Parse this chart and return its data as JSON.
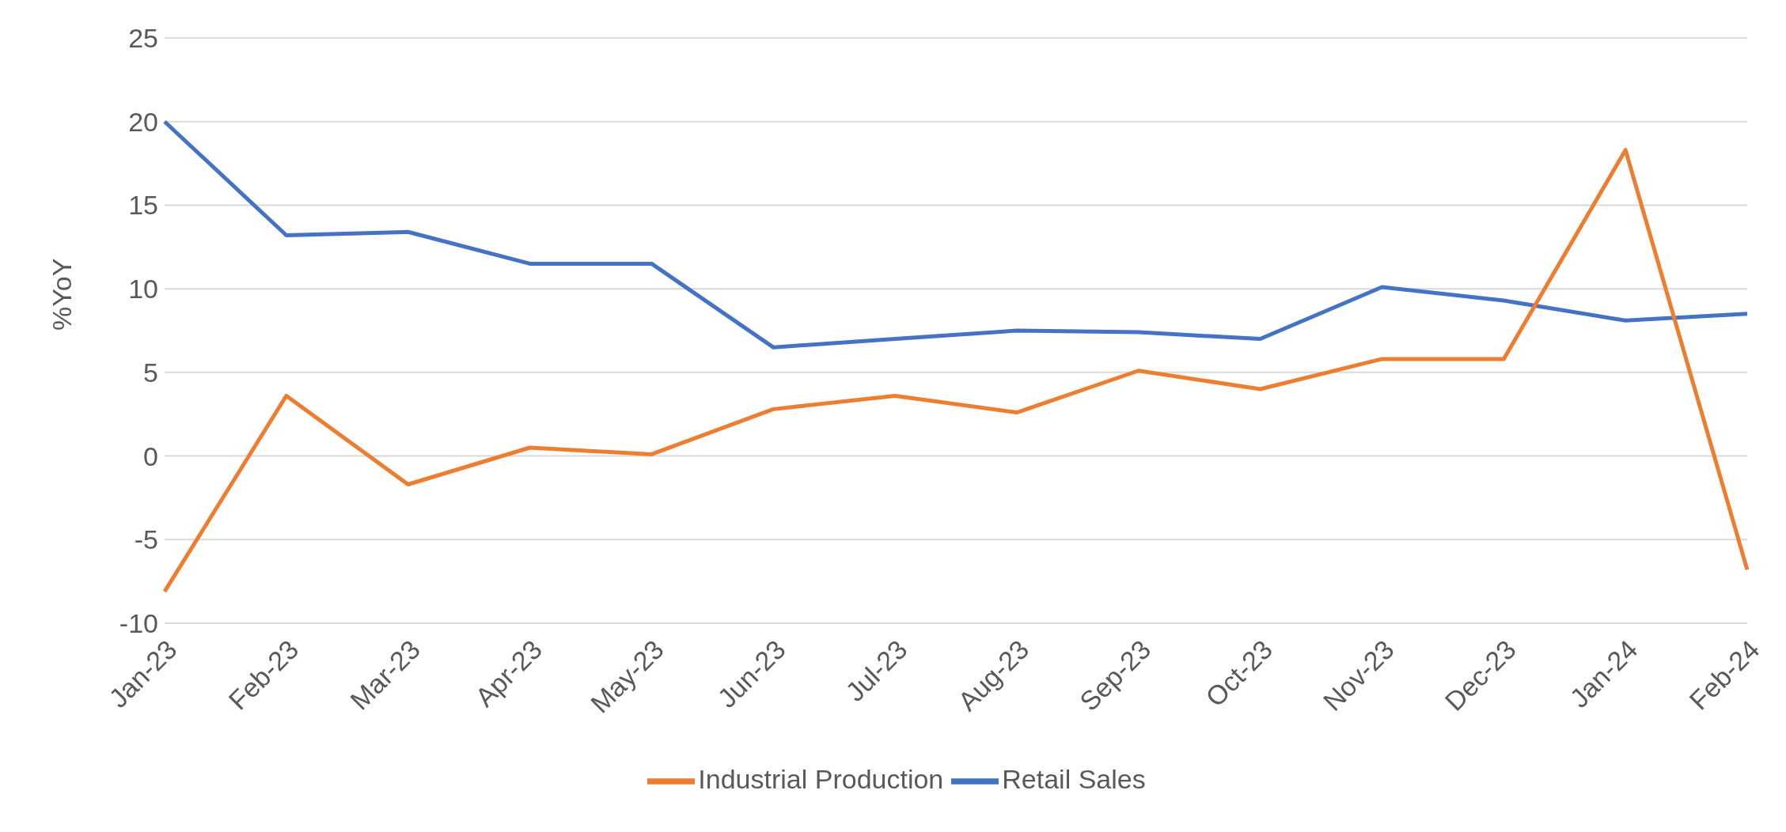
{
  "chart_data": {
    "type": "line",
    "ylabel": "%YoY",
    "categories": [
      "Jan-23",
      "Feb-23",
      "Mar-23",
      "Apr-23",
      "May-23",
      "Jun-23",
      "Jul-23",
      "Aug-23",
      "Sep-23",
      "Oct-23",
      "Nov-23",
      "Dec-23",
      "Jan-24",
      "Feb-24"
    ],
    "series": [
      {
        "name": "Retail Sales",
        "color": "#4472c4",
        "values": [
          20.0,
          13.2,
          13.4,
          11.5,
          11.5,
          6.5,
          7.0,
          7.5,
          7.4,
          7.0,
          10.1,
          9.3,
          8.1,
          8.5
        ]
      },
      {
        "name": "Industrial Production",
        "color": "#ed7d31",
        "values": [
          -8.1,
          3.6,
          -1.7,
          0.5,
          0.1,
          2.8,
          3.6,
          2.6,
          5.1,
          4.0,
          5.8,
          5.8,
          18.3,
          -6.8
        ]
      }
    ],
    "ylim": [
      -10,
      25
    ],
    "yticks": [
      -10,
      -5,
      0,
      5,
      10,
      15,
      20,
      25
    ],
    "grid": "y",
    "legend": "bottom",
    "marker": "none",
    "line_style": "solid"
  }
}
